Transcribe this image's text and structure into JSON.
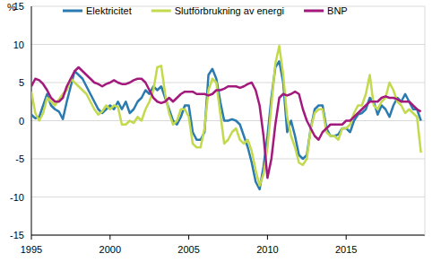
{
  "chart_data": {
    "type": "line",
    "ylabel": "%",
    "x": [
      1995,
      1995.25,
      1995.5,
      1995.75,
      1996,
      1996.25,
      1996.5,
      1996.75,
      1997,
      1997.25,
      1997.5,
      1997.75,
      1998,
      1998.25,
      1998.5,
      1998.75,
      1999,
      1999.25,
      1999.5,
      1999.75,
      2000,
      2000.25,
      2000.5,
      2000.75,
      2001,
      2001.25,
      2001.5,
      2001.75,
      2002,
      2002.25,
      2002.5,
      2002.75,
      2003,
      2003.25,
      2003.5,
      2003.75,
      2004,
      2004.25,
      2004.5,
      2004.75,
      2005,
      2005.25,
      2005.5,
      2005.75,
      2006,
      2006.25,
      2006.5,
      2006.75,
      2007,
      2007.25,
      2007.5,
      2007.75,
      2008,
      2008.25,
      2008.5,
      2008.75,
      2009,
      2009.25,
      2009.5,
      2009.75,
      2010,
      2010.25,
      2010.5,
      2010.75,
      2011,
      2011.25,
      2011.5,
      2011.75,
      2012,
      2012.25,
      2012.5,
      2012.75,
      2013,
      2013.25,
      2013.5,
      2013.75,
      2014,
      2014.25,
      2014.5,
      2014.75,
      2015,
      2015.25,
      2015.5,
      2015.75,
      2016,
      2016.25,
      2016.5,
      2016.75,
      2017,
      2017.25,
      2017.5,
      2017.75,
      2018,
      2018.25,
      2018.5,
      2018.75,
      2019,
      2019.25,
      2019.5,
      2019.75
    ],
    "series": [
      {
        "name": "Elektricitet",
        "color": "#2b7bb0",
        "values": [
          0.8,
          0.3,
          0.5,
          2.0,
          3.5,
          2.0,
          1.5,
          1.2,
          0.2,
          2.5,
          4.5,
          6.5,
          6.0,
          5.5,
          4.5,
          3.5,
          2.5,
          1.5,
          1.0,
          1.5,
          2.0,
          1.5,
          2.5,
          1.5,
          2.5,
          1.0,
          1.5,
          2.5,
          3.0,
          4.0,
          3.5,
          4.5,
          4.0,
          4.5,
          3.0,
          1.5,
          0.0,
          -0.5,
          0.5,
          2.0,
          2.0,
          -1.5,
          -2.5,
          -2.5,
          -1.5,
          6.0,
          6.8,
          5.5,
          2.5,
          0.0,
          0.0,
          0.2,
          0.0,
          -0.5,
          -2.0,
          -3.5,
          -5.5,
          -8.0,
          -9.0,
          -6.0,
          -2.0,
          3.0,
          7.0,
          7.8,
          5.0,
          -1.5,
          0.0,
          -2.0,
          -4.5,
          -5.0,
          -4.5,
          -1.0,
          1.5,
          2.0,
          2.0,
          -1.0,
          -2.0,
          -2.0,
          -1.8,
          -1.0,
          -1.0,
          -1.5,
          0.0,
          0.8,
          1.0,
          1.5,
          3.0,
          2.5,
          0.8,
          2.0,
          1.5,
          0.5,
          2.0,
          3.0,
          2.5,
          3.5,
          2.5,
          1.5,
          1.5,
          0.0
        ]
      },
      {
        "name": "Slutförbrukning av energi",
        "color": "#c3d94e",
        "values": [
          3.8,
          1.0,
          0.0,
          1.0,
          3.0,
          2.5,
          2.0,
          2.8,
          3.5,
          4.0,
          5.5,
          5.0,
          4.5,
          4.0,
          3.5,
          2.5,
          1.5,
          0.8,
          1.2,
          2.0,
          1.5,
          2.0,
          1.8,
          -0.5,
          -0.5,
          0.0,
          -0.3,
          0.5,
          0.0,
          1.5,
          2.5,
          4.0,
          7.0,
          7.2,
          3.5,
          1.0,
          -0.5,
          0.0,
          1.5,
          1.5,
          0.5,
          -3.0,
          -3.5,
          -3.5,
          -1.0,
          4.0,
          5.5,
          5.0,
          1.0,
          -3.0,
          -2.5,
          -1.5,
          -1.0,
          -2.5,
          -3.0,
          -2.5,
          -4.0,
          -6.5,
          -8.5,
          -7.0,
          -3.5,
          2.0,
          7.5,
          9.8,
          6.0,
          0.5,
          -2.0,
          -3.5,
          -5.5,
          -5.8,
          -5.0,
          -1.0,
          1.0,
          1.5,
          1.5,
          -1.5,
          -2.0,
          -2.0,
          -2.5,
          -1.0,
          -1.0,
          -0.5,
          1.0,
          2.0,
          2.0,
          3.5,
          6.0,
          2.0,
          1.5,
          2.5,
          3.0,
          5.0,
          4.0,
          2.5,
          2.0,
          1.0,
          1.5,
          1.0,
          0.5,
          -4.2
        ]
      },
      {
        "name": "BNP",
        "color": "#a3197c",
        "values": [
          4.5,
          5.5,
          5.3,
          4.8,
          4.0,
          3.0,
          2.5,
          2.5,
          3.0,
          4.5,
          5.5,
          6.5,
          7.0,
          6.5,
          6.0,
          5.5,
          5.0,
          4.8,
          4.5,
          4.8,
          5.0,
          5.3,
          5.0,
          4.8,
          4.8,
          5.0,
          5.3,
          5.5,
          5.5,
          5.0,
          4.0,
          3.0,
          2.5,
          2.3,
          2.5,
          3.0,
          2.5,
          3.0,
          3.5,
          3.8,
          3.8,
          3.8,
          3.5,
          3.5,
          3.5,
          3.3,
          3.5,
          4.0,
          4.0,
          4.2,
          4.5,
          4.5,
          4.5,
          4.3,
          4.5,
          4.8,
          5.0,
          4.0,
          2.0,
          -2.0,
          -7.5,
          -5.0,
          -0.5,
          3.0,
          3.5,
          3.3,
          3.5,
          3.8,
          3.5,
          1.5,
          0.0,
          -1.0,
          -2.0,
          -2.5,
          -1.5,
          -1.0,
          -0.5,
          -0.5,
          -0.5,
          -0.5,
          0.0,
          0.0,
          0.5,
          1.0,
          1.5,
          2.0,
          2.5,
          2.5,
          2.5,
          3.0,
          3.2,
          3.0,
          3.0,
          2.8,
          2.5,
          2.5,
          2.5,
          2.0,
          1.5,
          1.2
        ]
      }
    ],
    "xlim": [
      1995,
      2020
    ],
    "xticks": [
      1995,
      2000,
      2005,
      2010,
      2015
    ],
    "ylim": [
      -15,
      15
    ],
    "yticks": [
      -15,
      -10,
      -5,
      0,
      5,
      10,
      15
    ],
    "grid": true,
    "legend": "top"
  }
}
